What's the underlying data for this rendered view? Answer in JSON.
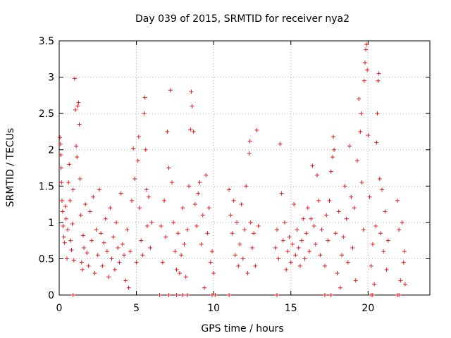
{
  "chart_data": {
    "type": "scatter",
    "title": "Day 039 of 2015, SRMTID for receiver nya2",
    "xlabel": "GPS time / hours",
    "ylabel": "SRMTID / TECUs",
    "xlim": [
      0,
      24
    ],
    "ylim": [
      0,
      3.5
    ],
    "x_ticks": [
      0,
      5,
      10,
      15,
      20
    ],
    "x_tick_labels": [
      "0",
      "5",
      "10",
      "15",
      "20"
    ],
    "y_ticks": [
      0,
      0.5,
      1,
      1.5,
      2,
      2.5,
      3,
      3.5
    ],
    "y_tick_labels": [
      "0",
      "0.5",
      "1",
      "1.5",
      "2",
      "2.5",
      "3",
      "3.5"
    ],
    "grid": true,
    "marker": "+",
    "series": [
      {
        "name": "SRMTID",
        "color": "#e41a1c",
        "points": [
          [
            0.05,
            2.17
          ],
          [
            0.08,
            2.08
          ],
          [
            0.1,
            1.93
          ],
          [
            0.12,
            1.75
          ],
          [
            0.15,
            1.55
          ],
          [
            0.18,
            1.3
          ],
          [
            0.22,
            1.15
          ],
          [
            0.25,
            0.95
          ],
          [
            0.3,
            0.8
          ],
          [
            0.35,
            0.72
          ],
          [
            0.4,
            1.22
          ],
          [
            0.45,
            1.05
          ],
          [
            0.5,
            0.5
          ],
          [
            0.55,
            0.9
          ],
          [
            0.6,
            1.55
          ],
          [
            0.65,
            1.8
          ],
          [
            0.7,
            1.3
          ],
          [
            0.75,
            0.75
          ],
          [
            0.8,
            0.62
          ],
          [
            0.85,
            0.98
          ],
          [
            0.9,
            1.45
          ],
          [
            0.95,
            0.48
          ],
          [
            1.0,
            2.98
          ],
          [
            1.05,
            2.55
          ],
          [
            1.1,
            2.05
          ],
          [
            1.15,
            1.9
          ],
          [
            1.2,
            2.6
          ],
          [
            1.25,
            2.65
          ],
          [
            1.3,
            2.35
          ],
          [
            1.35,
            1.6
          ],
          [
            1.4,
            1.1
          ],
          [
            1.45,
            0.45
          ],
          [
            1.5,
            0.35
          ],
          [
            1.55,
            0.82
          ],
          [
            1.6,
            0.65
          ],
          [
            1.7,
            1.25
          ],
          [
            1.8,
            0.58
          ],
          [
            1.9,
            0.4
          ],
          [
            2.0,
            1.15
          ],
          [
            2.1,
            0.75
          ],
          [
            2.2,
            1.35
          ],
          [
            2.3,
            0.3
          ],
          [
            2.4,
            0.9
          ],
          [
            2.5,
            0.55
          ],
          [
            2.6,
            1.45
          ],
          [
            2.7,
            0.85
          ],
          [
            2.8,
            0.4
          ],
          [
            2.9,
            0.72
          ],
          [
            3.0,
            1.05
          ],
          [
            3.1,
            0.6
          ],
          [
            3.2,
            0.25
          ],
          [
            3.3,
            1.2
          ],
          [
            3.4,
            0.5
          ],
          [
            3.5,
            0.8
          ],
          [
            3.6,
            0.35
          ],
          [
            3.7,
            1.0
          ],
          [
            3.8,
            0.65
          ],
          [
            3.9,
            0.45
          ],
          [
            4.0,
            1.4
          ],
          [
            4.1,
            0.7
          ],
          [
            4.2,
            0.55
          ],
          [
            4.3,
            0.2
          ],
          [
            4.4,
            0.9
          ],
          [
            4.5,
            0.1
          ],
          [
            4.6,
            0.6
          ],
          [
            4.7,
            1.3
          ],
          [
            4.8,
            2.02
          ],
          [
            4.9,
            1.6
          ],
          [
            5.0,
            0.45
          ],
          [
            5.1,
            1.85
          ],
          [
            5.15,
            2.18
          ],
          [
            5.2,
            1.2
          ],
          [
            5.3,
            0.75
          ],
          [
            5.4,
            0.55
          ],
          [
            5.5,
            2.5
          ],
          [
            5.55,
            2.72
          ],
          [
            5.6,
            2.0
          ],
          [
            5.65,
            1.45
          ],
          [
            5.7,
            0.95
          ],
          [
            5.8,
            1.35
          ],
          [
            5.9,
            0.65
          ],
          [
            6.0,
            1.0
          ],
          [
            6.6,
            0.95
          ],
          [
            6.7,
            0.45
          ],
          [
            6.8,
            1.3
          ],
          [
            6.9,
            0.8
          ],
          [
            7.0,
            2.25
          ],
          [
            7.1,
            1.75
          ],
          [
            7.2,
            2.82
          ],
          [
            7.3,
            1.55
          ],
          [
            7.4,
            1.0
          ],
          [
            7.5,
            0.6
          ],
          [
            7.6,
            0.35
          ],
          [
            7.7,
            0.85
          ],
          [
            7.8,
            0.3
          ],
          [
            7.9,
            0.55
          ],
          [
            8.0,
            1.2
          ],
          [
            8.1,
            0.7
          ],
          [
            8.2,
            0.25
          ],
          [
            8.3,
            0.9
          ],
          [
            8.4,
            1.5
          ],
          [
            8.5,
            2.28
          ],
          [
            8.55,
            2.8
          ],
          [
            8.6,
            2.6
          ],
          [
            8.7,
            2.25
          ],
          [
            8.8,
            1.25
          ],
          [
            8.9,
            0.95
          ],
          [
            9.0,
            1.4
          ],
          [
            9.1,
            1.55
          ],
          [
            9.2,
            0.7
          ],
          [
            9.3,
            1.1
          ],
          [
            9.4,
            0.1
          ],
          [
            9.5,
            1.65
          ],
          [
            9.6,
            0.85
          ],
          [
            9.7,
            1.2
          ],
          [
            9.8,
            0.45
          ],
          [
            9.9,
            0.6
          ],
          [
            10.0,
            0.3
          ],
          [
            11.0,
            1.45
          ],
          [
            11.1,
            1.1
          ],
          [
            11.2,
            0.85
          ],
          [
            11.3,
            1.3
          ],
          [
            11.4,
            0.55
          ],
          [
            11.5,
            1.0
          ],
          [
            11.6,
            0.4
          ],
          [
            11.7,
            0.7
          ],
          [
            11.8,
            1.25
          ],
          [
            11.9,
            0.5
          ],
          [
            12.0,
            0.9
          ],
          [
            12.1,
            1.5
          ],
          [
            12.2,
            0.3
          ],
          [
            12.3,
            1.95
          ],
          [
            12.35,
            2.12
          ],
          [
            12.4,
            1.0
          ],
          [
            12.5,
            0.65
          ],
          [
            12.6,
            0.85
          ],
          [
            12.7,
            0.4
          ],
          [
            12.8,
            2.27
          ],
          [
            12.9,
            0.95
          ],
          [
            14.0,
            0.65
          ],
          [
            14.1,
            0.9
          ],
          [
            14.2,
            0.5
          ],
          [
            14.3,
            2.08
          ],
          [
            14.4,
            1.4
          ],
          [
            14.5,
            0.75
          ],
          [
            14.6,
            1.0
          ],
          [
            14.7,
            0.35
          ],
          [
            14.8,
            0.6
          ],
          [
            14.9,
            0.8
          ],
          [
            15.0,
            0.45
          ],
          [
            15.1,
            0.7
          ],
          [
            15.2,
            1.25
          ],
          [
            15.3,
            0.55
          ],
          [
            15.4,
            0.9
          ],
          [
            15.5,
            0.65
          ],
          [
            15.6,
            0.4
          ],
          [
            15.7,
            0.75
          ],
          [
            15.8,
            1.05
          ],
          [
            15.9,
            0.5
          ],
          [
            16.0,
            0.85
          ],
          [
            16.1,
            1.2
          ],
          [
            16.2,
            0.6
          ],
          [
            16.3,
            1.05
          ],
          [
            16.4,
            1.78
          ],
          [
            16.5,
            0.95
          ],
          [
            16.6,
            0.7
          ],
          [
            16.7,
            1.65
          ],
          [
            16.8,
            1.3
          ],
          [
            16.9,
            0.55
          ],
          [
            17.0,
            0.9
          ],
          [
            17.2,
            0.4
          ],
          [
            17.3,
            1.1
          ],
          [
            17.4,
            0.75
          ],
          [
            17.5,
            1.3
          ],
          [
            17.6,
            1.7
          ],
          [
            17.7,
            1.9
          ],
          [
            17.75,
            2.18
          ],
          [
            17.8,
            2.0
          ],
          [
            17.9,
            0.85
          ],
          [
            18.0,
            0.3
          ],
          [
            18.1,
            1.15
          ],
          [
            18.2,
            0.1
          ],
          [
            18.3,
            0.55
          ],
          [
            18.4,
            0.8
          ],
          [
            18.5,
            1.5
          ],
          [
            18.6,
            1.05
          ],
          [
            18.7,
            0.45
          ],
          [
            18.8,
            2.05
          ],
          [
            18.9,
            1.35
          ],
          [
            19.0,
            0.65
          ],
          [
            19.1,
            1.2
          ],
          [
            19.2,
            0.2
          ],
          [
            19.3,
            1.85
          ],
          [
            19.4,
            2.7
          ],
          [
            19.5,
            2.25
          ],
          [
            19.55,
            2.5
          ],
          [
            19.6,
            1.55
          ],
          [
            19.7,
            0.9
          ],
          [
            19.75,
            2.95
          ],
          [
            19.8,
            3.2
          ],
          [
            19.85,
            3.38
          ],
          [
            19.9,
            3.45
          ],
          [
            19.95,
            3.1
          ],
          [
            20.0,
            2.2
          ],
          [
            20.1,
            1.35
          ],
          [
            20.2,
            0.4
          ],
          [
            20.3,
            0.7
          ],
          [
            20.4,
            0.15
          ],
          [
            20.5,
            0.95
          ],
          [
            20.55,
            2.1
          ],
          [
            20.6,
            2.5
          ],
          [
            20.65,
            2.95
          ],
          [
            20.7,
            3.05
          ],
          [
            20.75,
            1.6
          ],
          [
            20.8,
            0.85
          ],
          [
            20.9,
            1.45
          ],
          [
            21.0,
            0.6
          ],
          [
            21.1,
            1.15
          ],
          [
            21.2,
            0.35
          ],
          [
            21.3,
            0.75
          ],
          [
            21.9,
            1.3
          ],
          [
            22.0,
            0.9
          ],
          [
            22.1,
            0.2
          ],
          [
            22.2,
            1.0
          ],
          [
            22.3,
            0.45
          ],
          [
            22.35,
            0.6
          ],
          [
            22.4,
            0.15
          ]
        ],
        "zero_points": [
          0.9,
          6.5,
          7.1,
          7.6,
          8.0,
          8.3,
          9.9,
          10.1,
          11.0,
          14.1,
          17.2,
          17.6,
          20.2,
          20.3,
          21.9,
          22.0
        ]
      }
    ]
  }
}
